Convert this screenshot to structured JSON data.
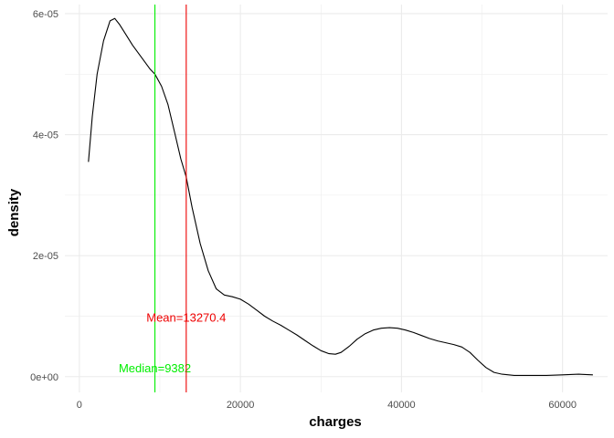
{
  "chart_data": {
    "type": "line",
    "title": "",
    "xlabel": "charges",
    "ylabel": "density",
    "xlim": [
      -1800,
      65600
    ],
    "ylim": [
      -2.6e-06,
      6.15e-05
    ],
    "x_ticks": [
      {
        "value": 0,
        "label": "0"
      },
      {
        "value": 20000,
        "label": "20000"
      },
      {
        "value": 40000,
        "label": "40000"
      },
      {
        "value": 60000,
        "label": "60000"
      }
    ],
    "y_ticks": [
      {
        "value": 0,
        "label": "0e+00"
      },
      {
        "value": 2e-05,
        "label": "2e-05"
      },
      {
        "value": 4e-05,
        "label": "4e-05"
      },
      {
        "value": 6e-05,
        "label": "6e-05"
      }
    ],
    "grid": true,
    "series": [
      {
        "color": "#000000",
        "x": [
          1122,
          1600,
          2200,
          3000,
          3800,
          4400,
          5000,
          5800,
          6600,
          7600,
          8800,
          9382,
          10200,
          11000,
          11800,
          12600,
          13270,
          14000,
          15000,
          16000,
          17000,
          18000,
          19000,
          20000,
          21000,
          22000,
          23000,
          24000,
          25000,
          26000,
          27000,
          28000,
          29000,
          30000,
          31000,
          31800,
          32500,
          33500,
          34500,
          35500,
          36500,
          37500,
          38500,
          39500,
          40500,
          41500,
          42500,
          43500,
          44500,
          45500,
          46500,
          47500,
          48500,
          49500,
          50500,
          51500,
          52500,
          54000,
          56000,
          58000,
          60000,
          62000,
          63770
        ],
        "y": [
          3.55e-05,
          4.3e-05,
          5e-05,
          5.55e-05,
          5.88e-05,
          5.92e-05,
          5.82e-05,
          5.65e-05,
          5.48e-05,
          5.3e-05,
          5.08e-05,
          5e-05,
          4.8e-05,
          4.5e-05,
          4.05e-05,
          3.6e-05,
          3.3e-05,
          2.8e-05,
          2.2e-05,
          1.75e-05,
          1.45e-05,
          1.35e-05,
          1.32e-05,
          1.28e-05,
          1.2e-05,
          1.1e-05,
          1e-05,
          9.2e-06,
          8.5e-06,
          7.7e-06,
          6.9e-06,
          6e-06,
          5.1e-06,
          4.3e-06,
          3.8e-06,
          3.7e-06,
          4e-06,
          5e-06,
          6.2e-06,
          7.1e-06,
          7.7e-06,
          8e-06,
          8.1e-06,
          8e-06,
          7.7e-06,
          7.3e-06,
          6.8e-06,
          6.3e-06,
          5.9e-06,
          5.6e-06,
          5.3e-06,
          4.9e-06,
          4e-06,
          2.7e-06,
          1.5e-06,
          7e-07,
          4e-07,
          2e-07,
          2e-07,
          2e-07,
          3e-07,
          4e-07,
          3e-07
        ]
      }
    ],
    "vlines": [
      {
        "x": 9382,
        "color": "#00ee00",
        "label": "Median=9382",
        "label_y": 1.3e-06
      },
      {
        "x": 13270.4,
        "color": "#ee0000",
        "label": "Mean=13270.4",
        "label_y": 9.7e-06
      }
    ]
  }
}
